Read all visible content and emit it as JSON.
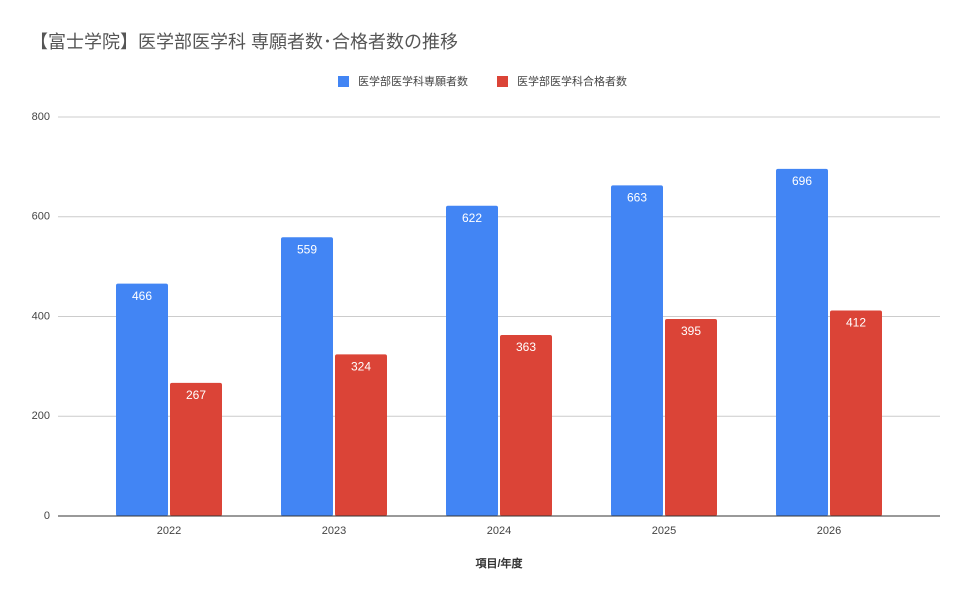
{
  "chart_data": {
    "type": "bar",
    "title": "【富士学院】医学部医学科 専願者数･合格者数の推移",
    "x_label": "項目/年度",
    "categories": [
      "2022",
      "2023",
      "2024",
      "2025",
      "2026"
    ],
    "series": [
      {
        "name": "医学部医学科専願者数",
        "color": "#4285f4",
        "values": [
          466,
          559,
          622,
          663,
          696
        ]
      },
      {
        "name": "医学部医学科合格者数",
        "color": "#db4437",
        "values": [
          267,
          324,
          363,
          395,
          412
        ]
      }
    ],
    "ylim": [
      0,
      800
    ],
    "yticks": [
      0,
      200,
      400,
      600,
      800
    ],
    "grid": true,
    "legend": "top"
  }
}
